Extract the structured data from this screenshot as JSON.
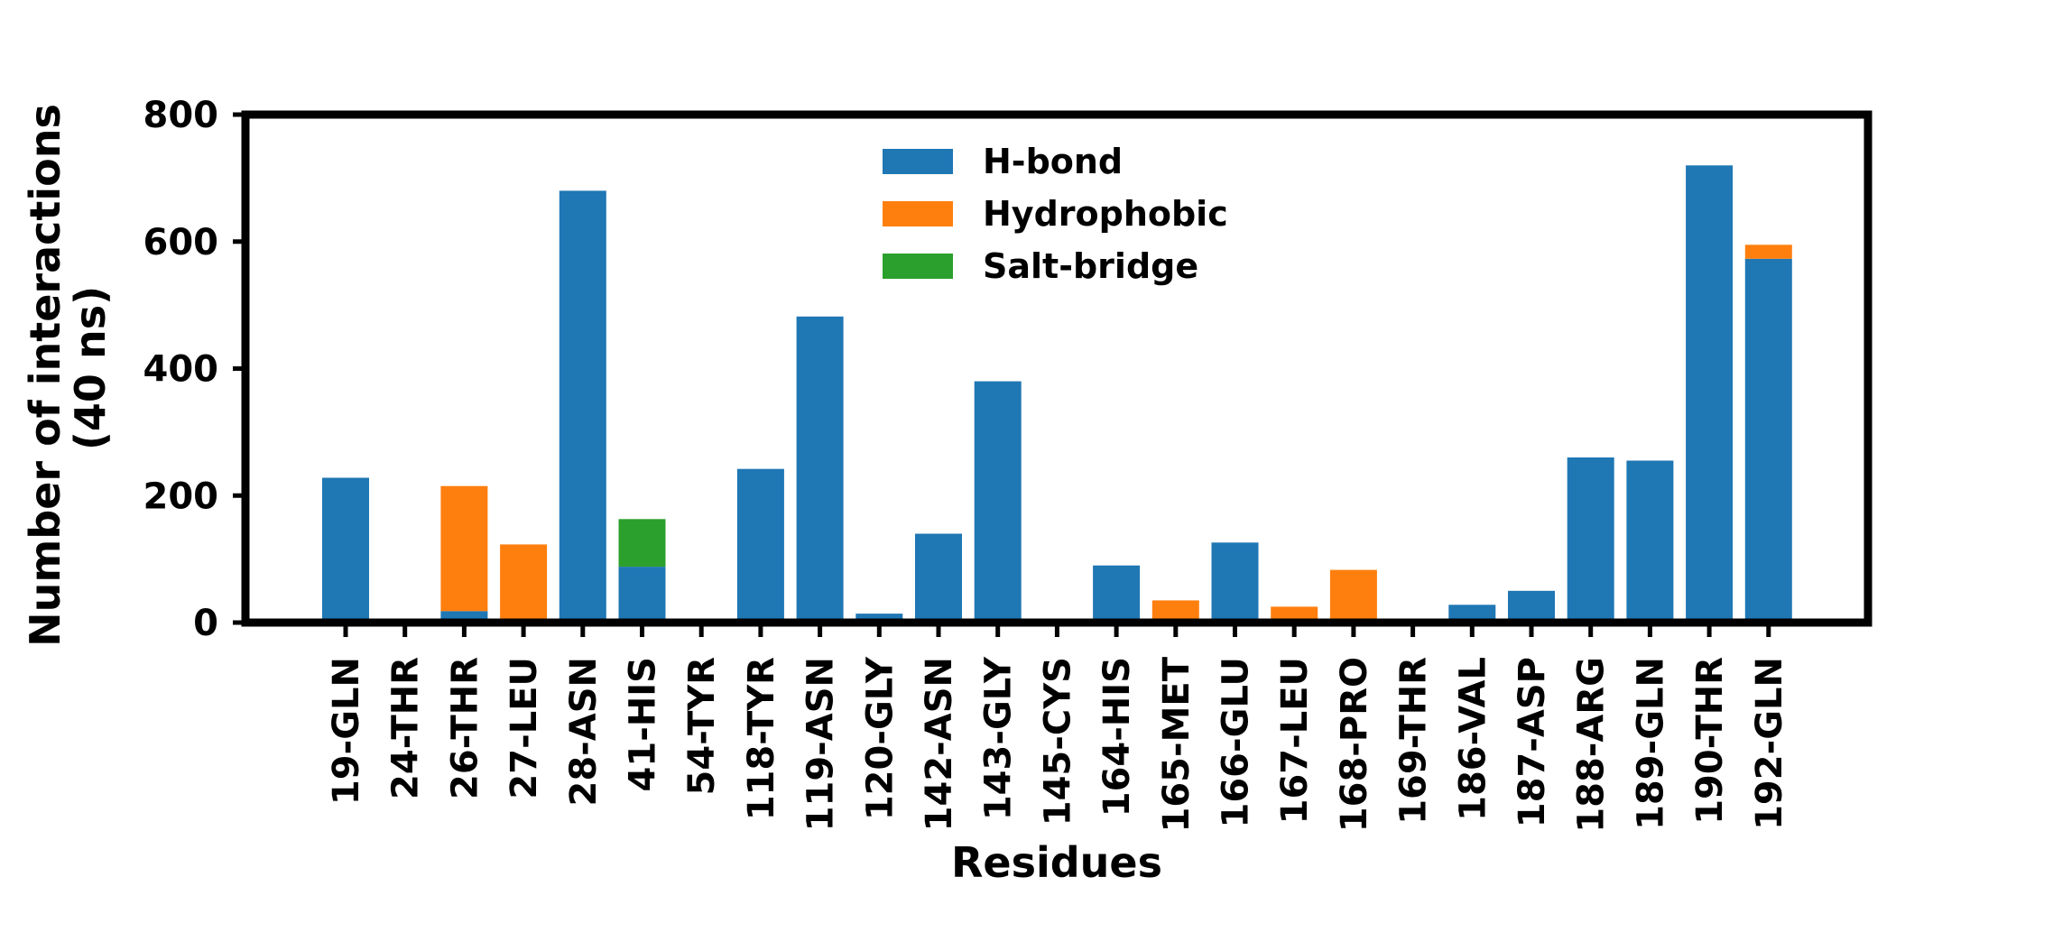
{
  "chart_data": {
    "type": "bar",
    "stacked": true,
    "title": "",
    "xlabel": "Residues",
    "ylabel_lines": [
      "Number of interactions",
      "(40 ns)"
    ],
    "ylim": [
      0,
      800
    ],
    "yticks": [
      0,
      200,
      400,
      600,
      800
    ],
    "grid": false,
    "legend_position": "top-center",
    "categories": [
      "19-GLN",
      "24-THR",
      "26-THR",
      "27-LEU",
      "28-ASN",
      "41-HIS",
      "54-TYR",
      "118-TYR",
      "119-ASN",
      "120-GLY",
      "142-ASN",
      "143-GLY",
      "145-CYS",
      "164-HIS",
      "165-MET",
      "166-GLU",
      "167-LEU",
      "168-PRO",
      "169-THR",
      "186-VAL",
      "187-ASP",
      "188-ARG",
      "189-GLN",
      "190-THR",
      "192-GLN"
    ],
    "series": [
      {
        "name": "H-bond",
        "color": "#1f77b4",
        "values": [
          228,
          2,
          18,
          0,
          680,
          88,
          6,
          242,
          482,
          14,
          140,
          380,
          2,
          90,
          0,
          126,
          0,
          0,
          2,
          28,
          50,
          260,
          255,
          720,
          573
        ]
      },
      {
        "name": "Hydrophobic",
        "color": "#ff7f0e",
        "values": [
          0,
          0,
          197,
          123,
          0,
          0,
          0,
          0,
          0,
          0,
          0,
          0,
          0,
          0,
          35,
          0,
          25,
          83,
          0,
          0,
          0,
          0,
          0,
          0,
          22
        ]
      },
      {
        "name": "Salt-bridge",
        "color": "#2ca02c",
        "values": [
          0,
          0,
          0,
          0,
          0,
          75,
          0,
          0,
          0,
          0,
          0,
          0,
          0,
          0,
          0,
          0,
          0,
          0,
          0,
          0,
          0,
          0,
          0,
          0,
          0
        ]
      }
    ]
  }
}
